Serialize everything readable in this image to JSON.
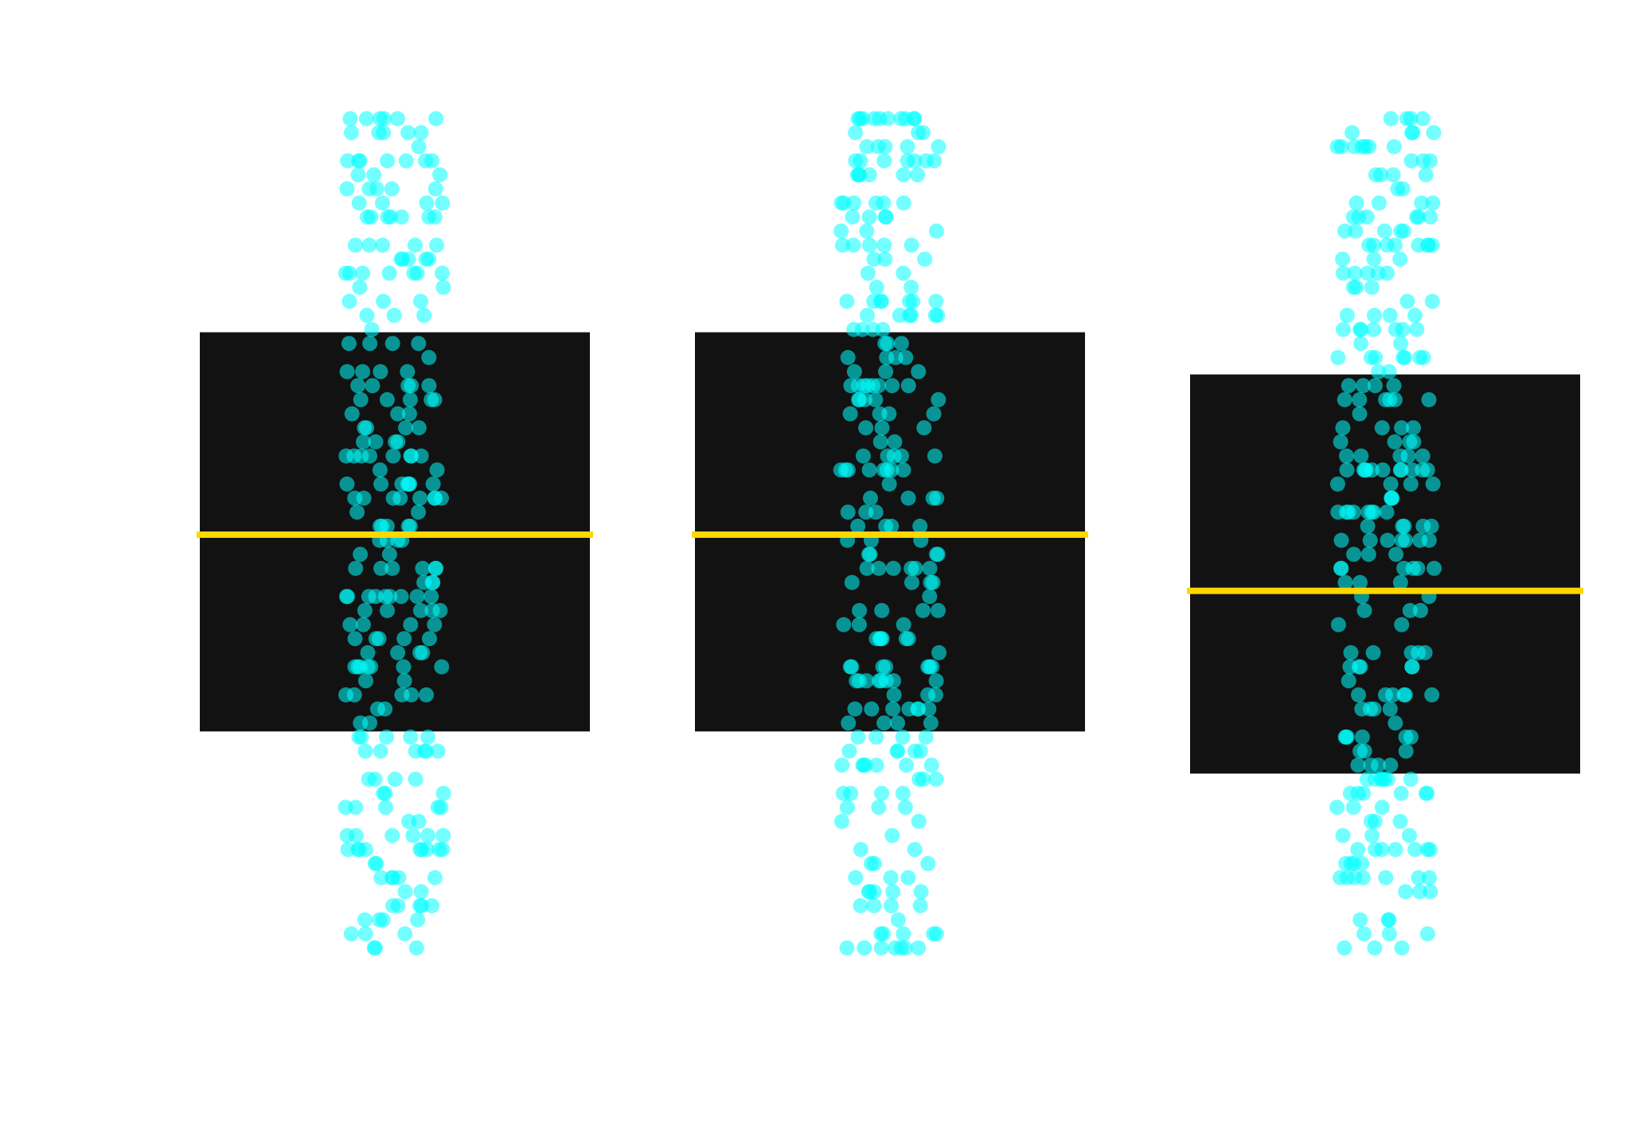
{
  "chart_data": {
    "type": "scatter",
    "subtype": "box-with-jittered-points",
    "title": "",
    "xlabel": "",
    "ylabel": "",
    "categories": [
      "",
      "",
      ""
    ],
    "ylim": [
      0,
      30
    ],
    "grid": false,
    "axes_visible": false,
    "legend": "none",
    "colors": {
      "box": "#121212",
      "median": "#ffd700",
      "points": "#00ffff",
      "background": "#ffffff"
    },
    "boxes": [
      {
        "q1": 8,
        "median": 15,
        "q3": 22.2
      },
      {
        "q1": 8,
        "median": 15,
        "q3": 22.2
      },
      {
        "q1": 6.5,
        "median": 13,
        "q3": 20.7
      }
    ],
    "points_per_group": 250,
    "points_value_range": [
      0.3,
      30
    ],
    "points_value_step": 0.5
  }
}
